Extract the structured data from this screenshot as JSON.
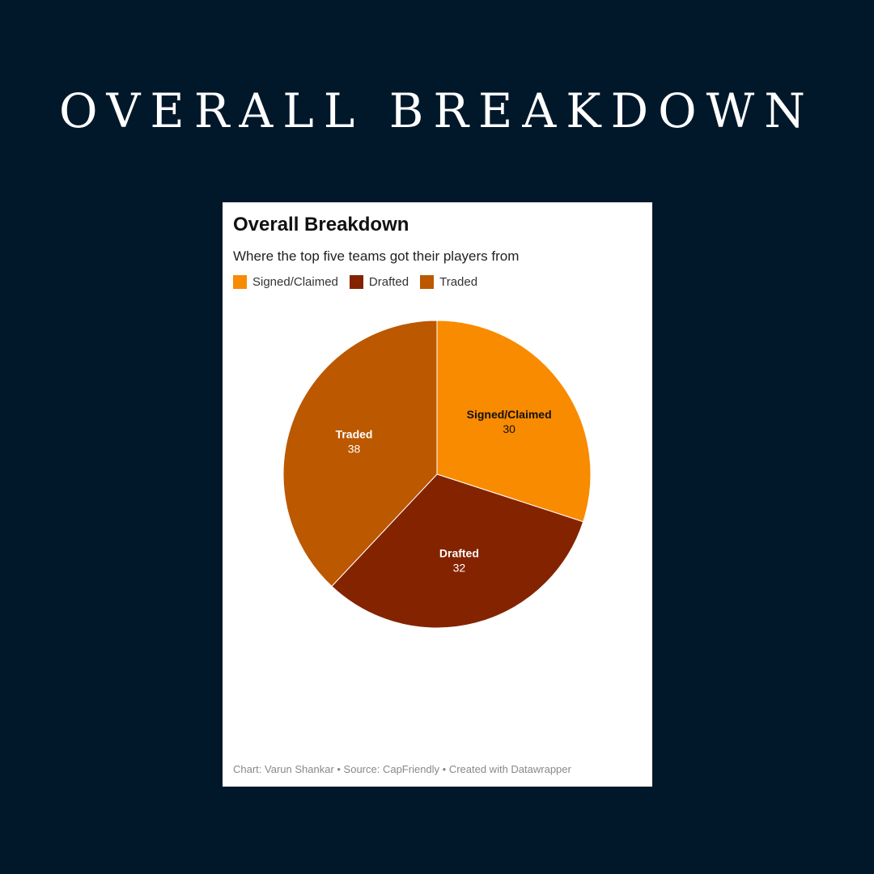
{
  "headline": "OVERALL BREAKDOWN",
  "card": {
    "title": "Overall Breakdown",
    "subtitle": "Where the top five teams got their players from",
    "footer": "Chart: Varun Shankar • Source: CapFriendly • Created with Datawrapper"
  },
  "colors": {
    "background": "#01182b",
    "card": "#ffffff"
  },
  "chart_data": {
    "type": "pie",
    "title": "Overall Breakdown",
    "subtitle": "Where the top five teams got their players from",
    "legend_position": "top-left",
    "slices": [
      {
        "label": "Signed/Claimed",
        "value": 30,
        "color": "#f98b00",
        "text_color": "#111111"
      },
      {
        "label": "Drafted",
        "value": 32,
        "color": "#842300",
        "text_color": "#ffffff"
      },
      {
        "label": "Traded",
        "value": 38,
        "color": "#bc5800",
        "text_color": "#ffffff"
      }
    ]
  }
}
